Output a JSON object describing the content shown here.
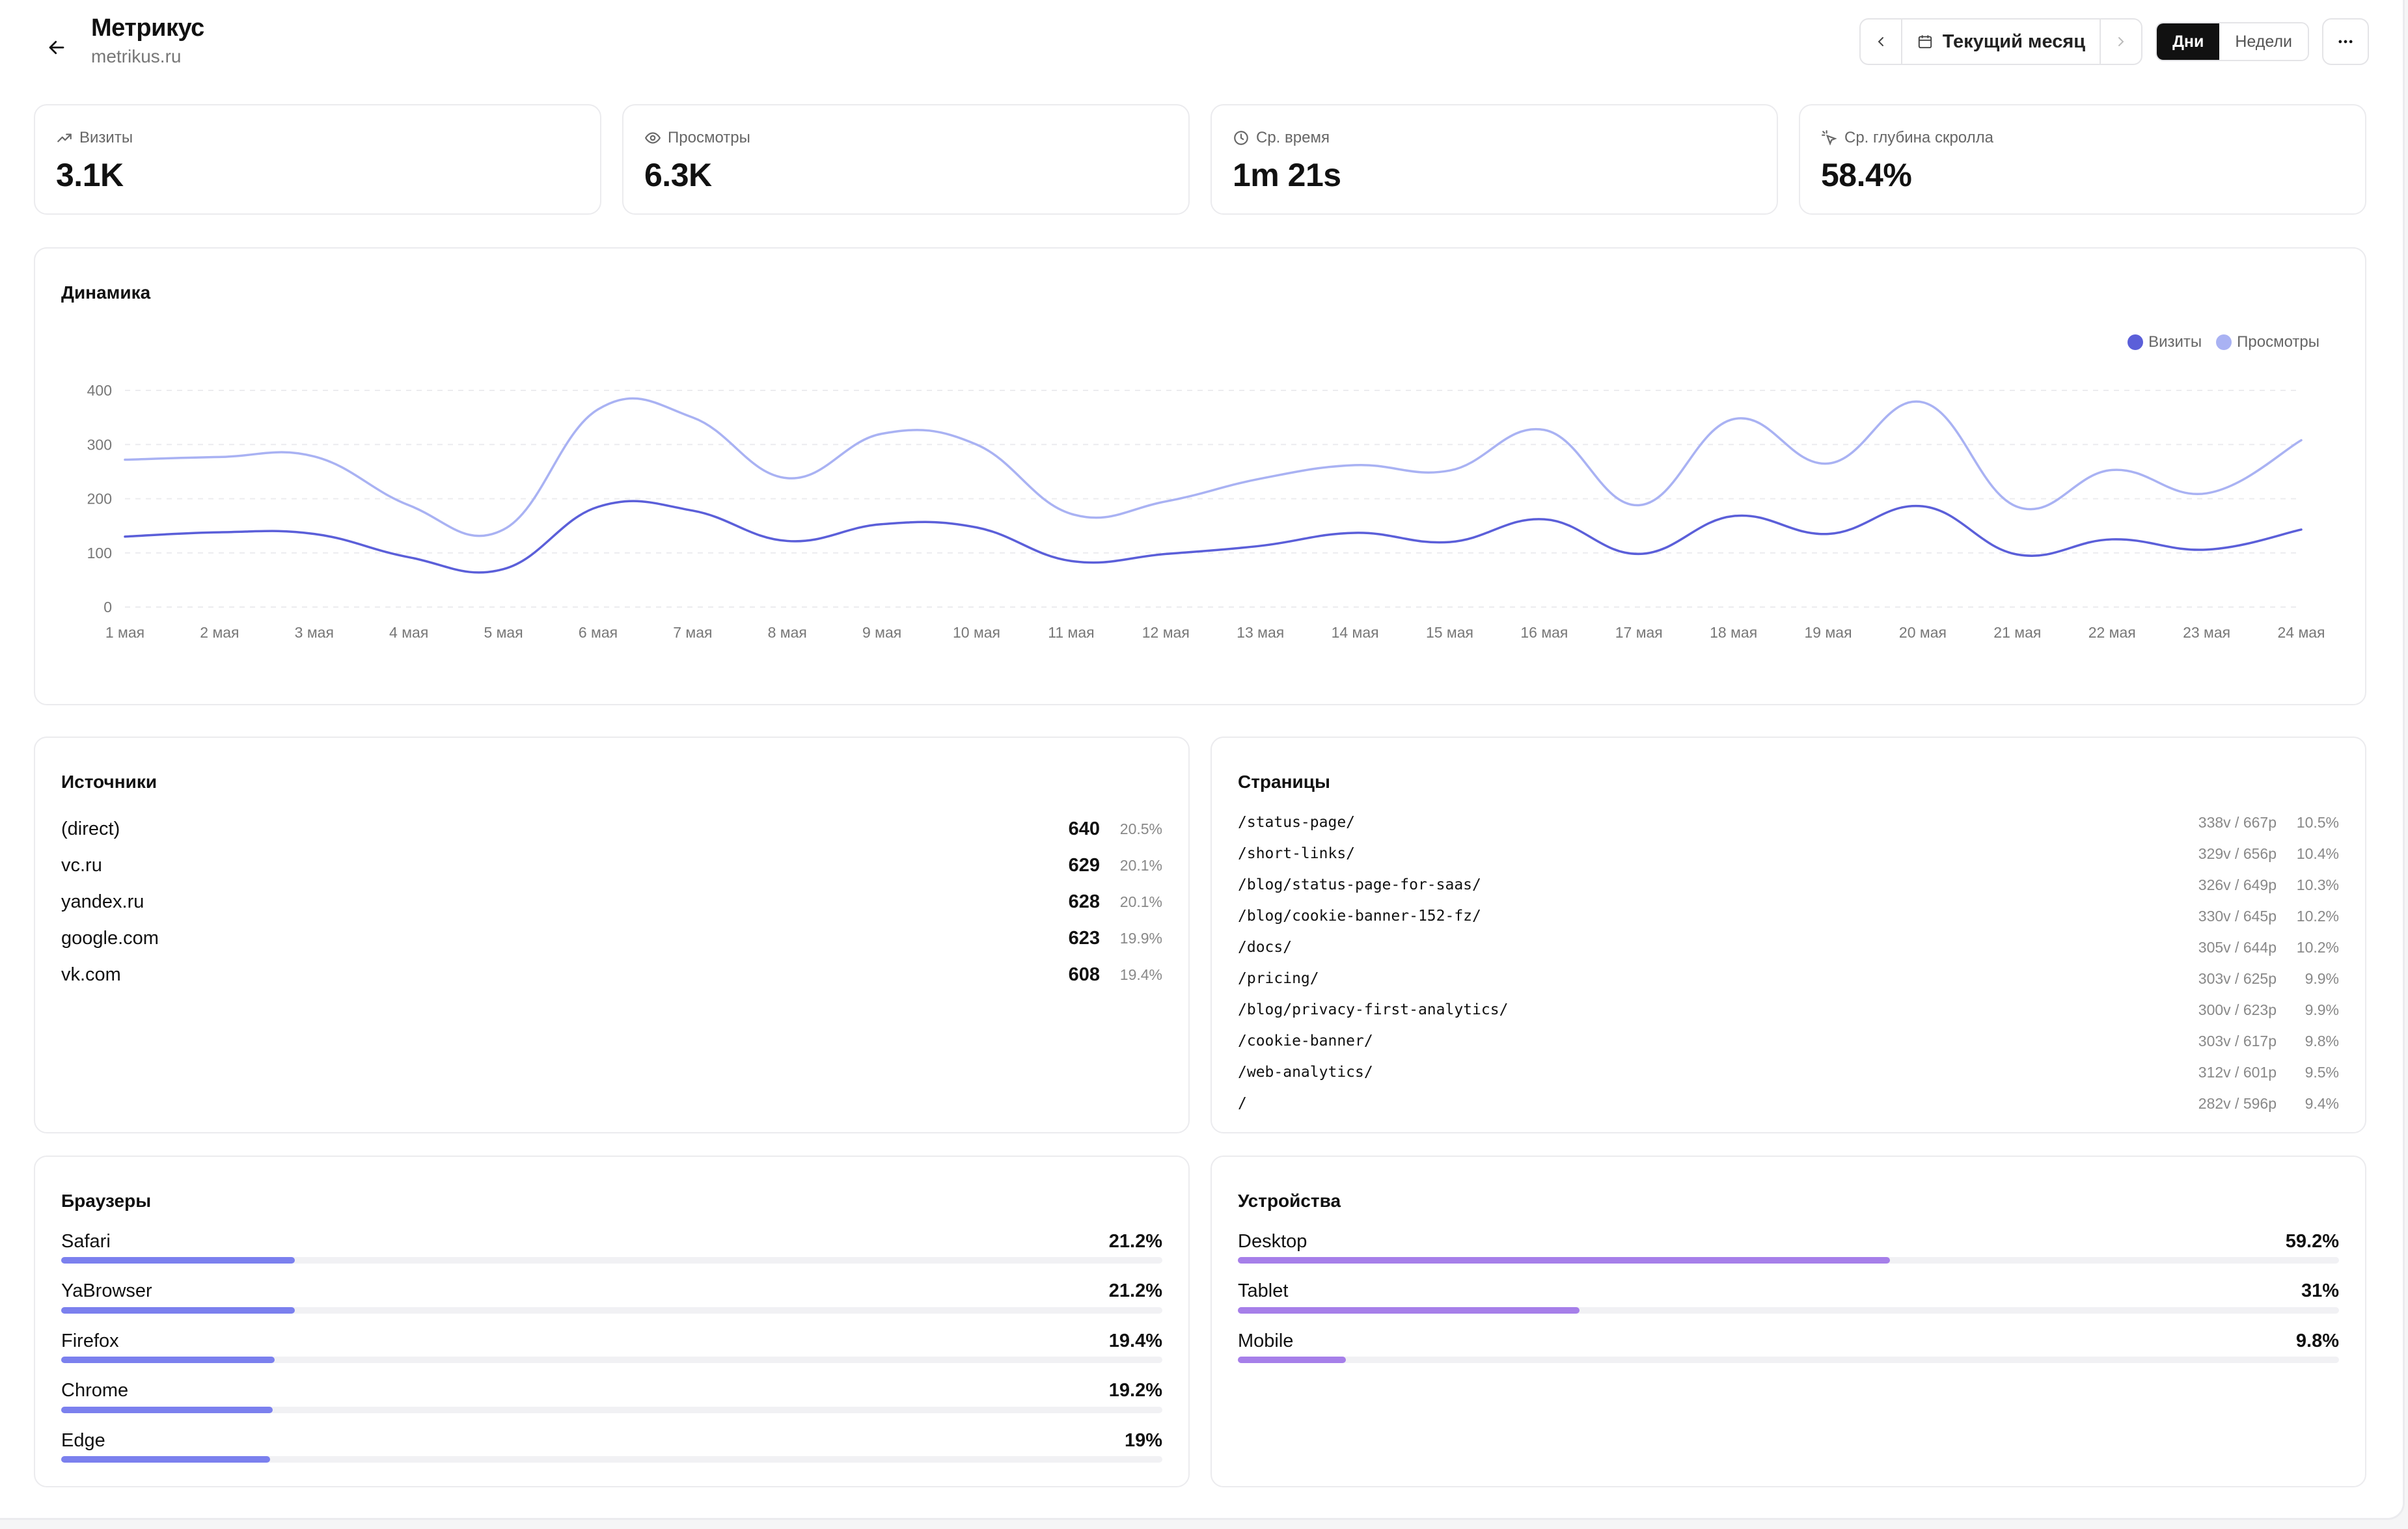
{
  "header": {
    "title": "Метрикус",
    "domain": "metrikus.ru",
    "period_label": "Текущий месяц",
    "granularity": [
      {
        "label": "Дни",
        "active": true
      },
      {
        "label": "Недели",
        "active": false
      }
    ]
  },
  "stats": [
    {
      "label": "Визиты",
      "value": "3.1K",
      "icon": "trending-up-icon"
    },
    {
      "label": "Просмотры",
      "value": "6.3K",
      "icon": "eye-icon"
    },
    {
      "label": "Ср. время",
      "value": "1m 21s",
      "icon": "clock-icon"
    },
    {
      "label": "Ср. глубина скролла",
      "value": "58.4%",
      "icon": "scroll-depth-icon"
    }
  ],
  "chart": {
    "title": "Динамика"
  },
  "chart_data": {
    "type": "line",
    "categories": [
      "1 мая",
      "2 мая",
      "3 мая",
      "4 мая",
      "5 мая",
      "6 мая",
      "7 мая",
      "8 мая",
      "9 мая",
      "10 мая",
      "11 мая",
      "12 мая",
      "13 мая",
      "14 мая",
      "15 мая",
      "16 мая",
      "17 мая",
      "18 мая",
      "19 мая",
      "20 мая",
      "21 мая",
      "22 мая",
      "23 мая",
      "24 мая"
    ],
    "series": [
      {
        "name": "Визиты",
        "color": "#5b5fd9",
        "values": [
          130,
          138,
          135,
          92,
          70,
          185,
          178,
          122,
          153,
          147,
          85,
          98,
          113,
          137,
          120,
          162,
          98,
          168,
          135,
          186,
          97,
          125,
          106,
          143
        ]
      },
      {
        "name": "Просмотры",
        "color": "#a9b2f3",
        "values": [
          272,
          277,
          278,
          188,
          143,
          365,
          350,
          238,
          320,
          300,
          172,
          195,
          237,
          262,
          252,
          327,
          188,
          347,
          265,
          378,
          185,
          253,
          210,
          308
        ]
      }
    ],
    "y_ticks": [
      0,
      100,
      200,
      300,
      400
    ],
    "ylim": [
      0,
      400
    ],
    "grid": true,
    "legend_position": "top-right"
  },
  "sources": {
    "title": "Источники",
    "items": [
      {
        "name": "(direct)",
        "count": "640",
        "pct": "20.5%"
      },
      {
        "name": "vc.ru",
        "count": "629",
        "pct": "20.1%"
      },
      {
        "name": "yandex.ru",
        "count": "628",
        "pct": "20.1%"
      },
      {
        "name": "google.com",
        "count": "623",
        "pct": "19.9%"
      },
      {
        "name": "vk.com",
        "count": "608",
        "pct": "19.4%"
      }
    ]
  },
  "pages": {
    "title": "Страницы",
    "items": [
      {
        "path": "/status-page/",
        "vp": "338v / 667p",
        "pct": "10.5%"
      },
      {
        "path": "/short-links/",
        "vp": "329v / 656p",
        "pct": "10.4%"
      },
      {
        "path": "/blog/status-page-for-saas/",
        "vp": "326v / 649p",
        "pct": "10.3%"
      },
      {
        "path": "/blog/cookie-banner-152-fz/",
        "vp": "330v / 645p",
        "pct": "10.2%"
      },
      {
        "path": "/docs/",
        "vp": "305v / 644p",
        "pct": "10.2%"
      },
      {
        "path": "/pricing/",
        "vp": "303v / 625p",
        "pct": "9.9%"
      },
      {
        "path": "/blog/privacy-first-analytics/",
        "vp": "300v / 623p",
        "pct": "9.9%"
      },
      {
        "path": "/cookie-banner/",
        "vp": "303v / 617p",
        "pct": "9.8%"
      },
      {
        "path": "/web-analytics/",
        "vp": "312v / 601p",
        "pct": "9.5%"
      },
      {
        "path": "/",
        "vp": "282v / 596p",
        "pct": "9.4%"
      }
    ]
  },
  "browsers": {
    "title": "Браузеры",
    "color": "#7b80ee",
    "items": [
      {
        "name": "Safari",
        "pct": "21.2%",
        "value": 21.2
      },
      {
        "name": "YaBrowser",
        "pct": "21.2%",
        "value": 21.2
      },
      {
        "name": "Firefox",
        "pct": "19.4%",
        "value": 19.4
      },
      {
        "name": "Chrome",
        "pct": "19.2%",
        "value": 19.2
      },
      {
        "name": "Edge",
        "pct": "19%",
        "value": 19.0
      }
    ]
  },
  "devices": {
    "title": "Устройства",
    "color": "#a67fe9",
    "items": [
      {
        "name": "Desktop",
        "pct": "59.2%",
        "value": 59.2
      },
      {
        "name": "Tablet",
        "pct": "31%",
        "value": 31.0
      },
      {
        "name": "Mobile",
        "pct": "9.8%",
        "value": 9.8
      }
    ]
  }
}
